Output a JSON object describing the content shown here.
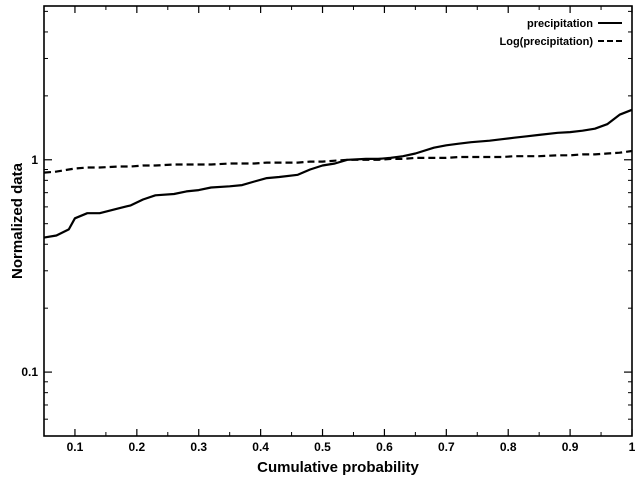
{
  "chart_data": {
    "type": "line",
    "title": "",
    "xlabel": "Cumulative probability",
    "ylabel": "Normalized data",
    "xlim": [
      0.05,
      1.0
    ],
    "ylim": [
      0.05,
      5.3
    ],
    "yscale": "log",
    "grid": false,
    "legend_position": "top-right",
    "x_ticks": [
      0.1,
      0.2,
      0.3,
      0.4,
      0.5,
      0.6,
      0.7,
      0.8,
      0.9,
      1.0
    ],
    "x_tick_labels": [
      "0.1",
      "0.2",
      "0.3",
      "0.4",
      "0.5",
      "0.6",
      "0.7",
      "0.8",
      "0.9",
      "1"
    ],
    "y_ticks": [
      0.1,
      1.0
    ],
    "y_tick_labels": [
      "0.1",
      "1"
    ],
    "x": [
      0.05,
      0.07,
      0.09,
      0.1,
      0.12,
      0.14,
      0.17,
      0.19,
      0.21,
      0.23,
      0.26,
      0.28,
      0.3,
      0.32,
      0.35,
      0.37,
      0.39,
      0.41,
      0.43,
      0.46,
      0.48,
      0.5,
      0.52,
      0.54,
      0.57,
      0.59,
      0.61,
      0.63,
      0.65,
      0.68,
      0.7,
      0.72,
      0.74,
      0.77,
      0.79,
      0.81,
      0.83,
      0.85,
      0.88,
      0.9,
      0.92,
      0.94,
      0.96,
      0.98,
      1.0
    ],
    "series": [
      {
        "name": "precipitation",
        "style": "solid",
        "color": "#000000",
        "values": [
          0.43,
          0.44,
          0.47,
          0.53,
          0.56,
          0.56,
          0.59,
          0.61,
          0.65,
          0.68,
          0.69,
          0.71,
          0.72,
          0.74,
          0.75,
          0.76,
          0.79,
          0.82,
          0.83,
          0.85,
          0.9,
          0.94,
          0.96,
          1.0,
          1.01,
          1.01,
          1.02,
          1.04,
          1.07,
          1.14,
          1.17,
          1.19,
          1.21,
          1.23,
          1.25,
          1.27,
          1.29,
          1.31,
          1.34,
          1.35,
          1.37,
          1.4,
          1.47,
          1.63,
          1.72
        ]
      },
      {
        "name": "Log(precipitation)",
        "style": "dashed",
        "color": "#000000",
        "values": [
          0.87,
          0.88,
          0.9,
          0.91,
          0.92,
          0.92,
          0.93,
          0.93,
          0.94,
          0.94,
          0.95,
          0.95,
          0.95,
          0.95,
          0.96,
          0.96,
          0.96,
          0.97,
          0.97,
          0.97,
          0.98,
          0.98,
          0.99,
          1.0,
          1.0,
          1.0,
          1.01,
          1.01,
          1.02,
          1.02,
          1.02,
          1.03,
          1.03,
          1.03,
          1.03,
          1.04,
          1.04,
          1.04,
          1.05,
          1.05,
          1.06,
          1.06,
          1.07,
          1.08,
          1.1
        ]
      }
    ]
  }
}
